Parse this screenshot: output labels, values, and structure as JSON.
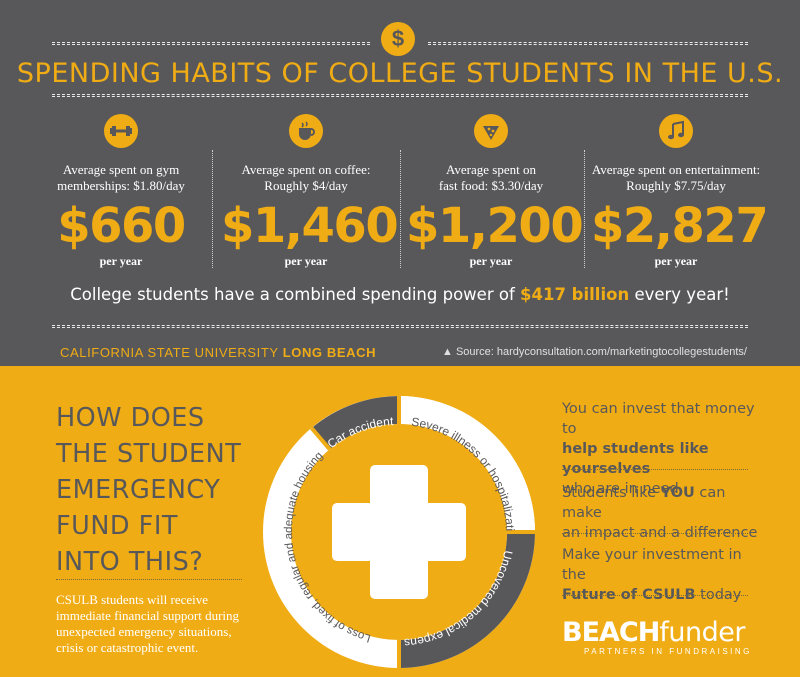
{
  "header": {
    "badge": "$",
    "title": "SPENDING HABITS OF COLLEGE STUDENTS IN THE U.S."
  },
  "columns": [
    {
      "icon": "dumbbell-icon",
      "desc_line1": "Average spent on gym",
      "desc_line2": "memberships: $1.80/day",
      "amount": "$660",
      "per": "per year"
    },
    {
      "icon": "coffee-icon",
      "desc_line1": "Average spent on coffee:",
      "desc_line2": "Roughly $4/day",
      "amount": "$1,460",
      "per": "per year"
    },
    {
      "icon": "pizza-icon",
      "desc_line1": "Average spent on",
      "desc_line2": "fast food: $3.30/day",
      "amount": "$1,200",
      "per": "per year"
    },
    {
      "icon": "music-note-icon",
      "desc_line1": "Average spent on entertainment:",
      "desc_line2": "Roughly $7.75/day",
      "amount": "$2,827",
      "per": "per year"
    }
  ],
  "power": {
    "before": "College students have a combined spending power of ",
    "highlight": "$417 billion",
    "after": " every year!"
  },
  "footer_top": {
    "university_a": "CALIFORNIA STATE UNIVERSITY ",
    "university_b": "LONG BEACH",
    "source": "▲ Source: hardyconsultation.com/marketingtocollegestudents/"
  },
  "left": {
    "heading_lines": [
      "HOW DOES",
      "THE STUDENT",
      "EMERGENCY",
      "FUND FIT",
      "INTO THIS?"
    ],
    "support_lines": [
      "CSULB students will receive",
      "immediate financial support during",
      "unexpected emergency situations,",
      "crisis or catastrophic event."
    ]
  },
  "wheel": {
    "segments": [
      "Car accident",
      "Severe illness or hospitalization",
      "Uncovered medical expenses",
      "Loss of fixed, regular and adequate housing"
    ]
  },
  "right": {
    "p1_a": "You can invest that money to",
    "p1_b": "help students like yourselves",
    "p1_c": "who are in need",
    "p2_a": "Students like ",
    "p2_b": "YOU",
    "p2_c": " can make",
    "p2_d": "an impact and a difference",
    "p3_a": "Make your investment in the",
    "p3_b": "Future of CSULB",
    "p3_c": " today"
  },
  "logo": {
    "beach": "BEACH",
    "funder": "funder",
    "tagline": "PARTNERS IN FUNDRAISING"
  },
  "colors": {
    "gold": "#f0ac14",
    "gray": "#58585a",
    "white": "#ffffff"
  }
}
